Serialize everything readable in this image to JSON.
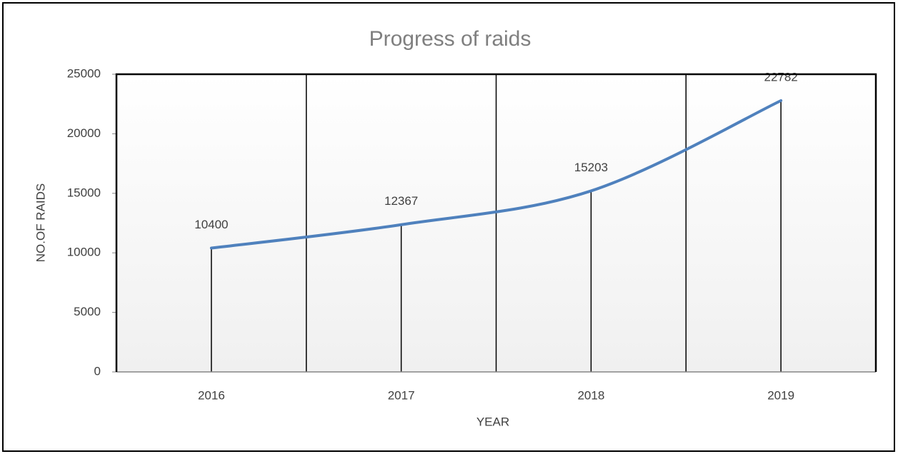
{
  "chart_data": {
    "type": "line",
    "title": "Progress of  raids",
    "x_label": "YEAR",
    "y_label": "NO.OF RAIDS",
    "categories": [
      "2016",
      "2017",
      "2018",
      "2019"
    ],
    "series": [
      {
        "name": "NO.OF RAIDS",
        "color": "#4f81bd",
        "values": [
          10400,
          12367,
          15203,
          22782
        ]
      }
    ],
    "ylim": [
      0,
      25000
    ],
    "yticks": [
      0,
      5000,
      10000,
      15000,
      20000,
      25000
    ],
    "vertical_grid": true,
    "drop_lines": true,
    "smooth": true,
    "data_labels": true
  }
}
